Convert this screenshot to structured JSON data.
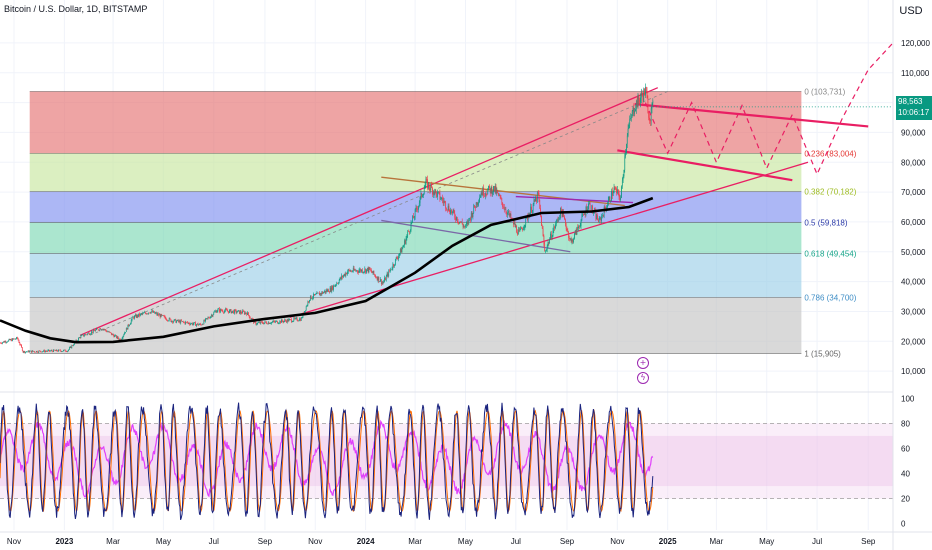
{
  "header": {
    "symbol": "Bitcoin / U.S. Dollar, 1D, BITSTAMP",
    "currency_button": "USD"
  },
  "price_tag": {
    "price": "98,563",
    "countdown": "10:06:17"
  },
  "indicator_buttons": {
    "plus_icon": "plus-icon",
    "bolt_icon": "bolt-icon"
  },
  "chart_data": [
    {
      "type": "candlestick",
      "title": "",
      "x_axis": {
        "tick_labels": [
          "Nov",
          "2023",
          "Mar",
          "May",
          "Jul",
          "Sep",
          "Nov",
          "2024",
          "Mar",
          "May",
          "Jul",
          "Sep",
          "Nov",
          "2025",
          "Mar",
          "May",
          "Jul",
          "Sep"
        ],
        "range": [
          "2022-10-15",
          "2025-10-01"
        ]
      },
      "y_axis": {
        "position": "right",
        "tick_labels": [
          "120,000",
          "110,000",
          "100,000",
          "90,000",
          "80,000",
          "70,000",
          "60,000",
          "50,000",
          "40,000",
          "30,000",
          "20,000",
          "10,000"
        ],
        "ticks": [
          120000,
          110000,
          100000,
          90000,
          80000,
          70000,
          60000,
          50000,
          40000,
          30000,
          20000,
          10000
        ],
        "ylim": [
          3000,
          125000
        ]
      },
      "grid": true,
      "price_series": [
        [
          "2022-10-15",
          19500
        ],
        [
          "2022-11-05",
          21000
        ],
        [
          "2022-11-12",
          16500
        ],
        [
          "2022-12-20",
          16800
        ],
        [
          "2023-01-05",
          16900
        ],
        [
          "2023-01-20",
          21500
        ],
        [
          "2023-02-15",
          24500
        ],
        [
          "2023-03-10",
          20500
        ],
        [
          "2023-03-25",
          28000
        ],
        [
          "2023-04-15",
          30000
        ],
        [
          "2023-05-10",
          27000
        ],
        [
          "2023-06-15",
          25500
        ],
        [
          "2023-07-05",
          30500
        ],
        [
          "2023-08-10",
          29500
        ],
        [
          "2023-08-20",
          26000
        ],
        [
          "2023-09-15",
          26500
        ],
        [
          "2023-10-15",
          27500
        ],
        [
          "2023-10-25",
          34500
        ],
        [
          "2023-11-20",
          37500
        ],
        [
          "2023-12-10",
          43500
        ],
        [
          "2024-01-05",
          44000
        ],
        [
          "2024-01-22",
          39500
        ],
        [
          "2024-02-15",
          51500
        ],
        [
          "2024-03-05",
          66000
        ],
        [
          "2024-03-14",
          73000
        ],
        [
          "2024-04-01",
          68000
        ],
        [
          "2024-04-15",
          63000
        ],
        [
          "2024-05-01",
          58000
        ],
        [
          "2024-05-20",
          70000
        ],
        [
          "2024-06-05",
          71000
        ],
        [
          "2024-07-05",
          56000
        ],
        [
          "2024-07-28",
          69000
        ],
        [
          "2024-08-05",
          50000
        ],
        [
          "2024-08-25",
          64000
        ],
        [
          "2024-09-06",
          53000
        ],
        [
          "2024-09-27",
          66000
        ],
        [
          "2024-10-10",
          60000
        ],
        [
          "2024-10-28",
          71000
        ],
        [
          "2024-11-05",
          68000
        ],
        [
          "2024-11-13",
          90000
        ],
        [
          "2024-11-22",
          99000
        ],
        [
          "2024-12-05",
          103731
        ],
        [
          "2024-12-10",
          95000
        ],
        [
          "2024-12-14",
          98563
        ]
      ],
      "moving_average": [
        [
          "2022-10-15",
          27000
        ],
        [
          "2022-11-15",
          23500
        ],
        [
          "2022-12-15",
          21000
        ],
        [
          "2023-01-15",
          19700
        ],
        [
          "2023-03-01",
          19800
        ],
        [
          "2023-05-01",
          21500
        ],
        [
          "2023-07-01",
          25000
        ],
        [
          "2023-09-01",
          27500
        ],
        [
          "2023-11-01",
          29500
        ],
        [
          "2024-01-01",
          33500
        ],
        [
          "2024-03-01",
          43000
        ],
        [
          "2024-04-15",
          52000
        ],
        [
          "2024-06-01",
          59000
        ],
        [
          "2024-08-01",
          63000
        ],
        [
          "2024-10-01",
          63500
        ],
        [
          "2024-11-15",
          65000
        ],
        [
          "2024-12-14",
          68000
        ]
      ],
      "fibonacci": [
        {
          "label": "0 (103,731)",
          "level": 0,
          "price": 103731,
          "color": "#e57373"
        },
        {
          "label": "0.236 (83,004)",
          "level": 0.236,
          "price": 83004,
          "color": "#c8e6a0"
        },
        {
          "label": "0.382 (70,182)",
          "level": 0.382,
          "price": 70182,
          "color": "#8090f0"
        },
        {
          "label": "0.5 (59,818)",
          "level": 0.5,
          "price": 59818,
          "color": "#7ed9b5"
        },
        {
          "label": "0.618 (49,454)",
          "level": 0.618,
          "price": 49454,
          "color": "#9ccfe8"
        },
        {
          "label": "0.786 (34,700)",
          "level": 0.786,
          "price": 34700,
          "color": "#c4c4c4"
        },
        {
          "label": "1 (15,905)",
          "level": 1,
          "price": 15905,
          "color": "#c4c4c4"
        }
      ],
      "fib_label_colors": [
        "#888888",
        "#e53935",
        "#9ebc21",
        "#2b3aa8",
        "#17a589",
        "#3f8ec6",
        "#666666"
      ],
      "trend_lines": [
        {
          "color": "#e91e63",
          "points": [
            [
              "2023-01-20",
              22000
            ],
            [
              "2024-12-20",
              105000
            ]
          ]
        },
        {
          "color": "#e91e63",
          "points": [
            [
              "2023-10-01",
              28000
            ],
            [
              "2025-06-20",
              80000
            ]
          ]
        },
        {
          "color": "#b8743b",
          "points": [
            [
              "2024-01-20",
              75000
            ],
            [
              "2024-11-10",
              65500
            ]
          ]
        },
        {
          "color": "#7b68a8",
          "points": [
            [
              "2024-01-20",
              60500
            ],
            [
              "2024-09-05",
              50000
            ]
          ]
        },
        {
          "color": "#9c27b0",
          "points": [
            [
              "2024-07-01",
              68500
            ],
            [
              "2024-11-20",
              66500
            ]
          ]
        },
        {
          "color": "#e91e63",
          "width": 2.2,
          "points": [
            [
              "2024-11-22",
              99500
            ],
            [
              "2025-09-01",
              92000
            ]
          ]
        },
        {
          "color": "#e91e63",
          "width": 2.2,
          "points": [
            [
              "2024-11-01",
              84000
            ],
            [
              "2025-06-01",
              74000
            ]
          ]
        }
      ],
      "projection_path": [
        [
          "2024-12-05",
          100000
        ],
        [
          "2025-01-01",
          83000
        ],
        [
          "2025-01-30",
          100000
        ],
        [
          "2025-03-01",
          80000
        ],
        [
          "2025-04-01",
          99000
        ],
        [
          "2025-05-01",
          78000
        ],
        [
          "2025-06-01",
          96000
        ],
        [
          "2025-07-01",
          76000
        ],
        [
          "2025-08-01",
          95000
        ],
        [
          "2025-09-01",
          111000
        ],
        [
          "2025-10-01",
          120000
        ]
      ],
      "projection_color": "#e91e63"
    },
    {
      "type": "line",
      "title": "",
      "y_axis": {
        "tick_labels": [
          "100",
          "80",
          "60",
          "40",
          "20",
          "0"
        ],
        "ticks": [
          100,
          80,
          60,
          40,
          20,
          0
        ],
        "ylim": [
          -5,
          105
        ]
      },
      "bands": {
        "upper": 80,
        "lower": 20,
        "inner_upper": 70,
        "inner_lower": 30
      },
      "series": [
        {
          "color": "#1a237e",
          "role": "k"
        },
        {
          "color": "#ff6d00",
          "role": "d"
        },
        {
          "color": "#e040fb",
          "role": "rsi"
        }
      ],
      "cycles": 42,
      "end_date": "2024-12-14",
      "start_date": "2022-10-15"
    }
  ]
}
